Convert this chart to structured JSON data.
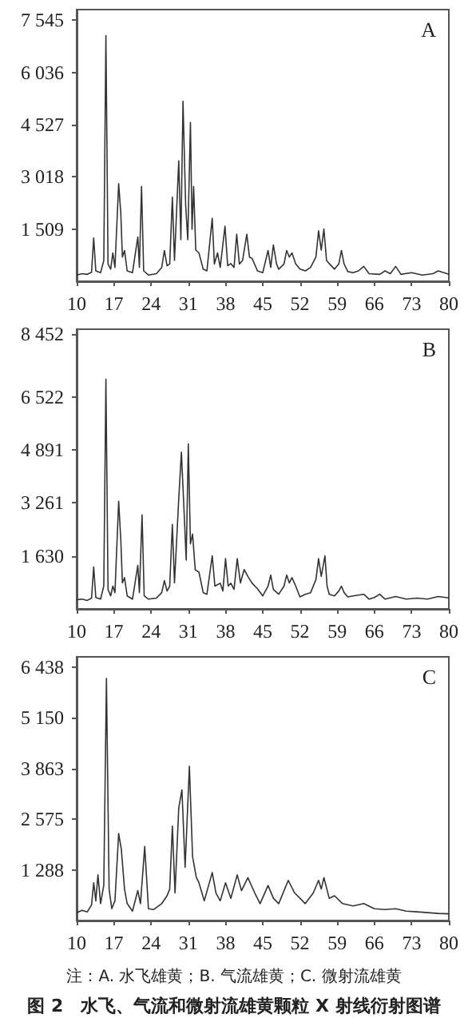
{
  "chart_data": [
    {
      "type": "line",
      "annotations": [
        "A"
      ],
      "xlim": [
        10,
        80
      ],
      "xticks": [
        10,
        17,
        24,
        31,
        38,
        45,
        52,
        59,
        66,
        73,
        80
      ],
      "ylim": [
        0,
        7850
      ],
      "yticks": [
        {
          "value": 1509,
          "label": "1 509"
        },
        {
          "value": 3018,
          "label": "3 018"
        },
        {
          "value": 4527,
          "label": "4 527"
        },
        {
          "value": 6036,
          "label": "6 036"
        },
        {
          "value": 7545,
          "label": "7 545"
        }
      ],
      "x": [
        10,
        11,
        12,
        12.8,
        13.2,
        13.6,
        14.5,
        15.1,
        15.5,
        15.9,
        16.4,
        16.8,
        17.2,
        17.9,
        18.3,
        18.6,
        19,
        19.5,
        20.5,
        21.5,
        21.8,
        22.2,
        22.6,
        23.5,
        25,
        26,
        26.5,
        27,
        27.5,
        28,
        28.4,
        29.2,
        29.6,
        30,
        30.5,
        30.9,
        31.4,
        31.7,
        32,
        32.4,
        33,
        33.8,
        34.5,
        35.5,
        35.9,
        36.5,
        37,
        37.9,
        38.4,
        39,
        39.6,
        40.1,
        40.6,
        41.2,
        42,
        42.5,
        43,
        44,
        45,
        46,
        46.5,
        47,
        47.6,
        48,
        49,
        49.5,
        50,
        50.5,
        51.2,
        52,
        53,
        54,
        55,
        55.5,
        56,
        56.5,
        57,
        57.5,
        58.5,
        59.3,
        59.8,
        60.3,
        61,
        62,
        63,
        64,
        65,
        67,
        68,
        69,
        70,
        71,
        73,
        75,
        77,
        78,
        80
      ],
      "series": [
        {
          "color": "#333333",
          "values": [
            180,
            220,
            200,
            260,
            1250,
            300,
            250,
            600,
            7100,
            500,
            350,
            820,
            400,
            2820,
            1970,
            700,
            890,
            300,
            250,
            1280,
            400,
            2740,
            300,
            180,
            220,
            400,
            890,
            450,
            500,
            2430,
            600,
            3480,
            1200,
            5200,
            2200,
            1200,
            4590,
            1500,
            2740,
            900,
            820,
            350,
            300,
            1820,
            500,
            820,
            400,
            1590,
            450,
            510,
            400,
            1360,
            500,
            600,
            1360,
            700,
            660,
            300,
            250,
            890,
            400,
            1050,
            500,
            350,
            500,
            890,
            700,
            820,
            500,
            350,
            300,
            400,
            700,
            1460,
            900,
            1510,
            600,
            510,
            350,
            500,
            890,
            500,
            280,
            250,
            300,
            430,
            220,
            200,
            300,
            220,
            430,
            200,
            250,
            180,
            220,
            300,
            200
          ]
        }
      ]
    },
    {
      "type": "line",
      "annotations": [
        "B"
      ],
      "xlim": [
        10,
        80
      ],
      "xticks": [
        10,
        17,
        24,
        31,
        38,
        45,
        52,
        59,
        66,
        73,
        80
      ],
      "ylim": [
        0,
        8600
      ],
      "yticks": [
        {
          "value": 1630,
          "label": "1 630"
        },
        {
          "value": 3261,
          "label": "3 261"
        },
        {
          "value": 4891,
          "label": "4 891"
        },
        {
          "value": 6522,
          "label": "6 522"
        },
        {
          "value": 8452,
          "label": "8 452"
        }
      ],
      "x": [
        10,
        11,
        12,
        12.8,
        13.2,
        13.6,
        14.5,
        15.1,
        15.5,
        15.9,
        16.4,
        16.8,
        17.2,
        17.9,
        18.3,
        18.6,
        19,
        19.5,
        20.5,
        21.5,
        21.8,
        22.3,
        22.7,
        23.5,
        25,
        26,
        26.5,
        27,
        27.5,
        28,
        28.4,
        29.2,
        29.7,
        30.3,
        30.6,
        31,
        31.4,
        31.8,
        32.3,
        33,
        33.8,
        34.5,
        35.5,
        36,
        37,
        37.5,
        38,
        38.5,
        39,
        39.6,
        40.2,
        40.8,
        41.5,
        42.2,
        43,
        44,
        45,
        46,
        46.5,
        47,
        48,
        49,
        49.5,
        50,
        50.5,
        51.2,
        52,
        53,
        54,
        55,
        55.5,
        56,
        56.7,
        57.1,
        57.5,
        58.5,
        59.3,
        59.8,
        60.3,
        61,
        62,
        64,
        65,
        66,
        67,
        68,
        70,
        72,
        74,
        76,
        78,
        80
      ],
      "series": [
        {
          "color": "#333333",
          "values": [
            280,
            300,
            260,
            330,
            1290,
            350,
            300,
            700,
            7060,
            600,
            400,
            700,
            500,
            3310,
            2130,
            800,
            960,
            400,
            300,
            1340,
            500,
            2890,
            400,
            300,
            330,
            500,
            870,
            550,
            700,
            2600,
            800,
            3390,
            4820,
            2640,
            1500,
            5070,
            2000,
            2300,
            1200,
            1130,
            500,
            450,
            1630,
            700,
            790,
            550,
            1545,
            700,
            790,
            600,
            1545,
            800,
            1210,
            1000,
            790,
            620,
            400,
            700,
            1040,
            600,
            450,
            700,
            1040,
            800,
            960,
            700,
            370,
            450,
            500,
            900,
            1545,
            1000,
            1630,
            700,
            450,
            400,
            550,
            700,
            500,
            370,
            400,
            450,
            300,
            350,
            450,
            300,
            380,
            300,
            330,
            300,
            380,
            336
          ]
        }
      ]
    },
    {
      "type": "line",
      "annotations": [
        "C",
        "注：A. 水飞雄黄；B. 气流雄黄；C. 微射流雄黄",
        "图 2　水飞、气流和微射流雄黄颗粒 X 射线衍射图谱"
      ],
      "xlim": [
        10,
        80
      ],
      "xticks": [
        10,
        17,
        24,
        31,
        38,
        45,
        52,
        59,
        66,
        73,
        80
      ],
      "ylim": [
        0,
        6700
      ],
      "yticks": [
        {
          "value": 1288,
          "label": "1 288"
        },
        {
          "value": 2575,
          "label": "2 575"
        },
        {
          "value": 3863,
          "label": "3 863"
        },
        {
          "value": 5150,
          "label": "5 150"
        },
        {
          "value": 6438,
          "label": "6 438"
        }
      ],
      "x": [
        10,
        11,
        12,
        12.8,
        13.2,
        13.6,
        14,
        14.5,
        15.1,
        15.6,
        16.1,
        16.6,
        17.2,
        17.9,
        18.4,
        19,
        19.5,
        20.5,
        21.5,
        22,
        22.8,
        23.5,
        24.5,
        26,
        27,
        27.5,
        28,
        28.5,
        29.2,
        29.8,
        30.4,
        31.2,
        31.8,
        32.5,
        33,
        34,
        35.5,
        36.2,
        37,
        38,
        39,
        40.2,
        41,
        42.2,
        43.5,
        44.5,
        46,
        47,
        48,
        49.8,
        51,
        52,
        53,
        54.5,
        55.5,
        56,
        56.5,
        57.5,
        58.5,
        60,
        62,
        64,
        66,
        68,
        70,
        72,
        74,
        76,
        78,
        80
      ],
      "series": [
        {
          "color": "#333333",
          "values": [
            200,
            260,
            220,
            400,
            960,
            500,
            1160,
            430,
            900,
            6150,
            800,
            300,
            500,
            2210,
            1810,
            800,
            430,
            240,
            760,
            430,
            1880,
            300,
            280,
            430,
            630,
            800,
            2400,
            700,
            2860,
            3320,
            1350,
            3920,
            1620,
            1100,
            960,
            500,
            1220,
            700,
            500,
            960,
            565,
            1160,
            760,
            1090,
            700,
            430,
            890,
            565,
            430,
            1020,
            700,
            565,
            430,
            700,
            1020,
            800,
            1090,
            565,
            630,
            430,
            370,
            430,
            300,
            280,
            300,
            240,
            220,
            200,
            180,
            170
          ]
        }
      ]
    }
  ]
}
